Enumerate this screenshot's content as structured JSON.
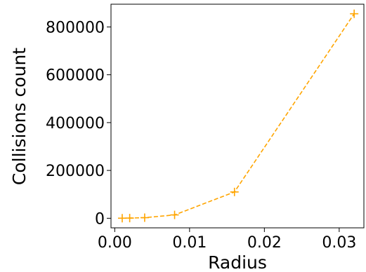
{
  "chart_data": {
    "type": "line",
    "title": "",
    "xlabel": "Radius",
    "ylabel": "Collisions count",
    "xlim": [
      -0.0005,
      0.0333
    ],
    "ylim": [
      -40000,
      895000
    ],
    "xticks": [
      0.0,
      0.01,
      0.02,
      0.03
    ],
    "xtick_labels": [
      "0.00",
      "0.01",
      "0.02",
      "0.03"
    ],
    "yticks": [
      0,
      200000,
      400000,
      600000,
      800000
    ],
    "ytick_labels": [
      "0",
      "200000",
      "400000",
      "600000",
      "800000"
    ],
    "grid": false,
    "legend": "none",
    "series": [
      {
        "x": [
          0.001,
          0.002,
          0.004,
          0.008,
          0.016,
          0.032
        ],
        "y": [
          300,
          800,
          2500,
          14000,
          110000,
          855000
        ],
        "color": "#ffa500",
        "line_style": "dashed",
        "marker": "plus"
      }
    ]
  }
}
